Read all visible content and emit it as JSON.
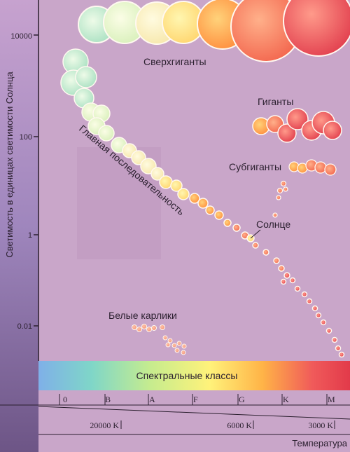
{
  "yaxis": {
    "label": "Светимость в единицах светимости Солнца",
    "ticks": [
      "10000",
      "100",
      "1",
      "0.01"
    ]
  },
  "regions": {
    "supergiants": "Сверхгиганты",
    "giants": "Гиганты",
    "subgiants": "Субгиганты",
    "main_sequence": "Главная последовательность",
    "sun": "Солнце",
    "white_dwarfs": "Белые карлики"
  },
  "spectral": {
    "title": "Спектральные классы",
    "classes": [
      "0",
      "B",
      "A",
      "F",
      "G",
      "K",
      "M"
    ]
  },
  "temperature": {
    "ticks": [
      "20000 K",
      "6000 K",
      "3000 K"
    ],
    "label": "Температура"
  },
  "colors": {
    "background": "#c9a6c9",
    "axis_strip": "#7a5f8f",
    "spectrum": [
      "#7fb0e8",
      "#7fd6c8",
      "#c6ec8e",
      "#fff27a",
      "#ffb347",
      "#f05a5a",
      "#e23a4a"
    ]
  }
}
